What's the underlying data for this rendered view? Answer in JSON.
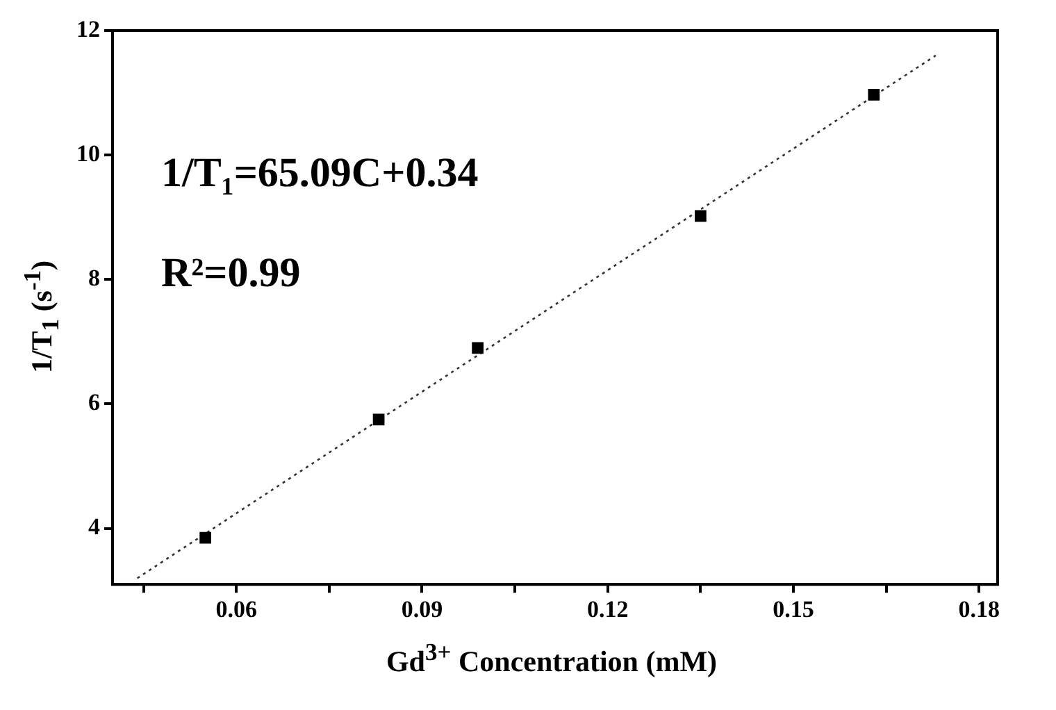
{
  "chart_data": {
    "type": "scatter",
    "xlabel": "Gd$^{3+}$ Concentration (mM)",
    "ylabel": "1/T$_{1}$ (s$^{-1}$)",
    "annotations": [
      "1/T₁=65.09C+0.34",
      "R²=0.99"
    ],
    "xlim": [
      0.04,
      0.183
    ],
    "xticks": [
      {
        "value": 0.045,
        "label": null
      },
      0.06,
      {
        "value": 0.075,
        "label": null
      },
      0.09,
      {
        "value": 0.105,
        "label": null
      },
      0.12,
      {
        "value": 0.135,
        "label": null
      },
      0.15,
      {
        "value": 0.165,
        "label": null
      },
      0.18
    ],
    "ylim": [
      3.1,
      12
    ],
    "yticks": [
      4,
      6,
      8,
      10,
      12
    ],
    "grid": false,
    "legend": false,
    "series": [
      {
        "type": "scatter",
        "color": "#000000",
        "marker": "square",
        "x": [
          0.055,
          0.083,
          0.099,
          0.135,
          0.163
        ],
        "values": [
          3.85,
          5.75,
          6.9,
          9.02,
          10.97
        ]
      },
      {
        "type": "line",
        "color": "#333333",
        "marker": "none",
        "line_style": "dotted",
        "x": [
          0.044,
          0.173
        ],
        "values": [
          3.2,
          11.6
        ]
      }
    ]
  }
}
